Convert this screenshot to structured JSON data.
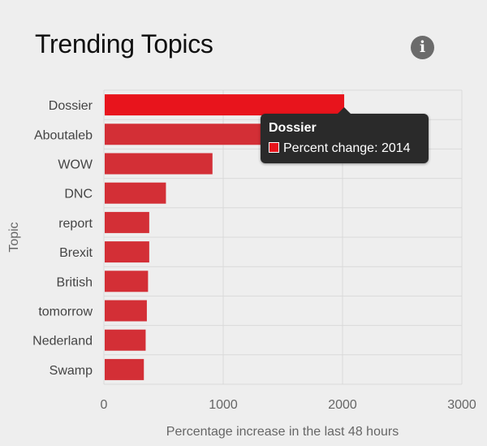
{
  "chart_data": {
    "type": "bar",
    "orientation": "horizontal",
    "title": "Trending Topics",
    "xlabel": "Percentage increase in the last 48 hours",
    "ylabel": "Topic",
    "categories": [
      "Dossier",
      "Aboutaleb",
      "WOW",
      "DNC",
      "report",
      "Brexit",
      "British",
      "tomorrow",
      "Nederland",
      "Swamp"
    ],
    "values": [
      2014,
      1320,
      910,
      520,
      380,
      380,
      370,
      360,
      350,
      335
    ],
    "xlim": [
      0,
      3000
    ],
    "xticks": [
      "0",
      "1000",
      "2000",
      "3000"
    ],
    "grid": true,
    "colors": {
      "bar": "#d32f36",
      "highlight": "#e8141c"
    }
  },
  "info": {
    "icon": "info-icon",
    "glyph": "i"
  },
  "tooltip": {
    "title": "Dossier",
    "text": "Percent change: 2014"
  }
}
